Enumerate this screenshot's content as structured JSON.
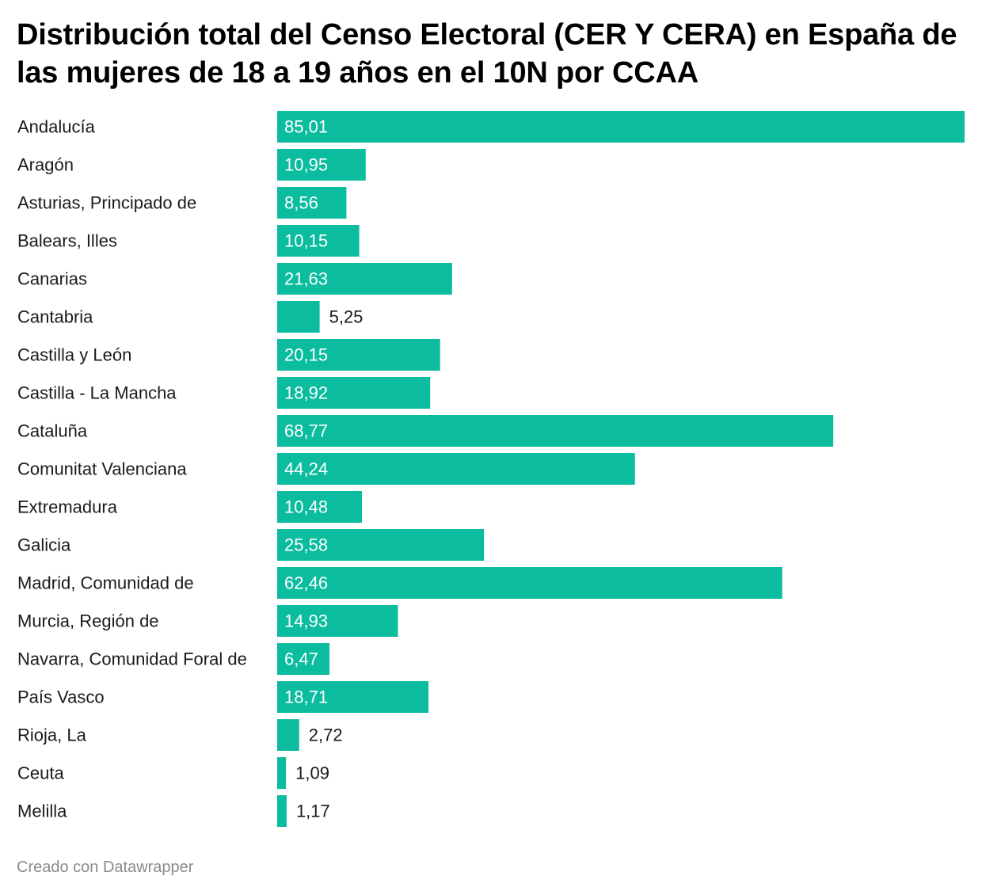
{
  "chart_data": {
    "type": "bar",
    "orientation": "horizontal",
    "title": "Distribución total del Censo Electoral (CER Y CERA) en España de las mujeres de 18 a 19 años en el 10N por CCAA",
    "categories": [
      "Andalucía",
      "Aragón",
      "Asturias, Principado de",
      "Balears, Illes",
      "Canarias",
      "Cantabria",
      "Castilla y León",
      "Castilla - La Mancha",
      "Cataluña",
      "Comunitat Valenciana",
      "Extremadura",
      "Galicia",
      "Madrid, Comunidad de",
      "Murcia, Región de",
      "Navarra, Comunidad Foral de",
      "País Vasco",
      "Rioja, La",
      "Ceuta",
      "Melilla"
    ],
    "values": [
      85.01,
      10.95,
      8.56,
      10.15,
      21.63,
      5.25,
      20.15,
      18.92,
      68.77,
      44.24,
      10.48,
      25.58,
      62.46,
      14.93,
      6.47,
      18.71,
      2.72,
      1.09,
      1.17
    ],
    "value_labels": [
      "85,01",
      "10,95",
      "8,56",
      "10,15",
      "21,63",
      "5,25",
      "20,15",
      "18,92",
      "68,77",
      "44,24",
      "10,48",
      "25,58",
      "62,46",
      "14,93",
      "6,47",
      "18,71",
      "2,72",
      "1,09",
      "1,17"
    ],
    "xlim": [
      0,
      85.01
    ],
    "bar_color": "#0bbc9f",
    "grid": false
  },
  "footer": "Creado con Datawrapper"
}
